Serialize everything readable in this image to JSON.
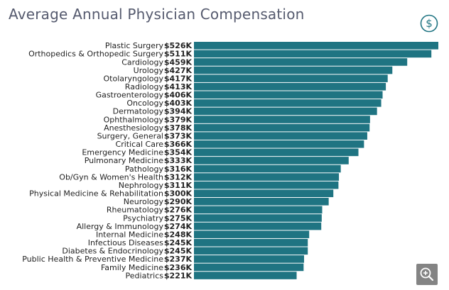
{
  "page": {
    "title": "Average Annual Physician Compensation",
    "bar_color": "#1f7482",
    "icons": {
      "header": "dollar-circle-icon",
      "footer": "zoom-in-icon"
    }
  },
  "chart_data": {
    "type": "bar",
    "orientation": "horizontal",
    "title": "Average Annual Physician Compensation",
    "xlabel": "",
    "ylabel": "",
    "unit": "$K",
    "xlim": [
      0,
      526
    ],
    "grid": false,
    "categories": [
      "Plastic Surgery",
      "Orthopedics & Orthopedic Surgery",
      "Cardiology",
      "Urology",
      "Otolaryngology",
      "Radiology",
      "Gastroenterology",
      "Oncology",
      "Dermatology",
      "Ophthalmology",
      "Anesthesiology",
      "Surgery, General",
      "Critical Care",
      "Emergency Medicine",
      "Pulmonary Medicine",
      "Pathology",
      "Ob/Gyn & Women's Health",
      "Nephrology",
      "Physical Medicine & Rehabilitation",
      "Neurology",
      "Rheumatology",
      "Psychiatry",
      "Allergy & Immunology",
      "Internal Medicine",
      "Infectious Diseases",
      "Diabetes & Endocrinology",
      "Public Health & Preventive Medicine",
      "Family Medicine",
      "Pediatrics"
    ],
    "values": [
      526,
      511,
      459,
      427,
      417,
      413,
      406,
      403,
      394,
      379,
      378,
      373,
      366,
      354,
      333,
      316,
      312,
      311,
      300,
      290,
      276,
      275,
      274,
      248,
      245,
      245,
      237,
      236,
      221
    ],
    "value_labels": [
      "$526K",
      "$511K",
      "$459K",
      "$427K",
      "$417K",
      "$413K",
      "$406K",
      "$403K",
      "$394K",
      "$379K",
      "$378K",
      "$373K",
      "$366K",
      "$354K",
      "$333K",
      "$316K",
      "$312K",
      "$311K",
      "$300K",
      "$290K",
      "$276K",
      "$275K",
      "$274K",
      "$248K",
      "$245K",
      "$245K",
      "$237K",
      "$236K",
      "$221K"
    ]
  }
}
